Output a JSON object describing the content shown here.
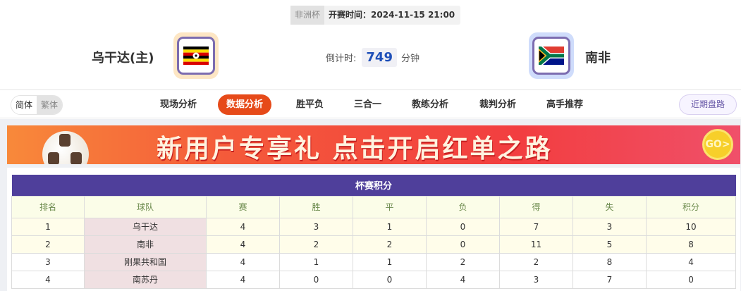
{
  "match": {
    "competition": "非洲杯",
    "kickoff": "开赛时间：2024-11-15 21:00",
    "home": {
      "name": "乌干达(主)",
      "flag": "uganda-flag"
    },
    "away": {
      "name": "南非",
      "flag": "south-africa-flag"
    },
    "countdown": {
      "label": "倒计时:",
      "value": "749",
      "unit": "分钟"
    }
  },
  "nav": {
    "langs": [
      "简体",
      "繁体"
    ],
    "tabs": [
      "现场分析",
      "数据分析",
      "胜平负",
      "三合一",
      "教练分析",
      "裁判分析",
      "高手推荐"
    ],
    "active": "数据分析",
    "recent": "近期盘路"
  },
  "banner": {
    "text": "新用户专享礼  点击开启红单之路",
    "go": "GO>"
  },
  "standings": {
    "title": "杯赛积分",
    "columns": [
      "排名",
      "球队",
      "赛",
      "胜",
      "平",
      "负",
      "得",
      "失",
      "积分"
    ],
    "rows": [
      [
        "1",
        "乌干达",
        "4",
        "3",
        "1",
        "0",
        "7",
        "3",
        "10"
      ],
      [
        "2",
        "南非",
        "4",
        "2",
        "2",
        "0",
        "11",
        "5",
        "8"
      ],
      [
        "3",
        "刚果共和国",
        "4",
        "1",
        "1",
        "2",
        "2",
        "8",
        "4"
      ],
      [
        "4",
        "南苏丹",
        "4",
        "0",
        "0",
        "4",
        "3",
        "7",
        "0"
      ]
    ]
  },
  "colors": {
    "accent": "#e64a19",
    "table_header": "#4f3f9b",
    "countdown": "#1e4fb8"
  }
}
